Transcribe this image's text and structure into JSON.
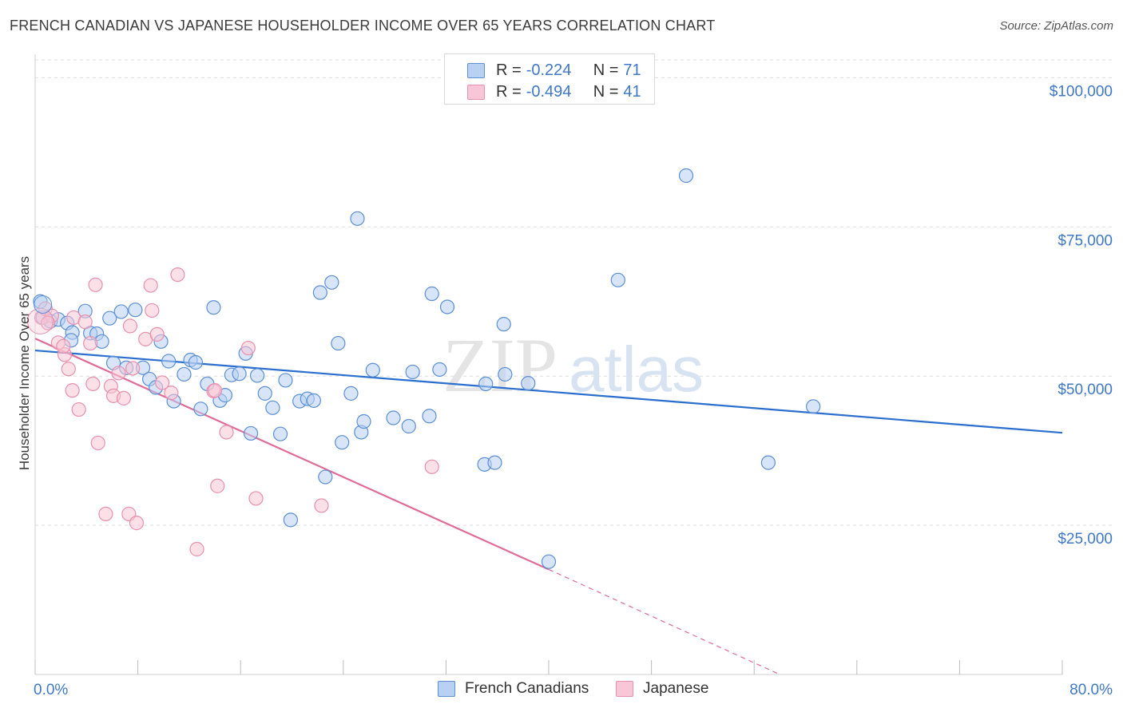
{
  "header": {
    "title": "FRENCH CANADIAN VS JAPANESE HOUSEHOLDER INCOME OVER 65 YEARS CORRELATION CHART",
    "source": "Source: ZipAtlas.com"
  },
  "watermark": {
    "zip": "ZIP",
    "atlas": "atlas"
  },
  "legend_top": {
    "rows": [
      {
        "r_label": "R =",
        "r_value": "-0.224",
        "n_label": "N =",
        "n_value": "71"
      },
      {
        "r_label": "R =",
        "r_value": "-0.494",
        "n_label": "N =",
        "n_value": "41"
      }
    ]
  },
  "legend_bottom": {
    "items": [
      "French Canadians",
      "Japanese"
    ]
  },
  "colors": {
    "blue_fill": "#b8d0f2",
    "blue_stroke": "#5b8fd6",
    "blue_line": "#2a6fcf",
    "pink_fill": "#f8c6d6",
    "pink_stroke": "#e890ae",
    "pink_line": "#e06a98",
    "tick_text": "#3f78c8",
    "grid": "#dddddd"
  },
  "chart_data": {
    "type": "scatter",
    "title": "FRENCH CANADIAN VS JAPANESE HOUSEHOLDER INCOME OVER 65 YEARS CORRELATION CHART",
    "xlabel": "",
    "ylabel": "Householder Income Over 65 years",
    "xlim": [
      0,
      80
    ],
    "ylim": [
      0,
      105000
    ],
    "x_tick_labels": [
      "0.0%",
      "80.0%"
    ],
    "y_ticks": [
      25000,
      50000,
      75000,
      100000
    ],
    "y_tick_labels": [
      "$25,000",
      "$50,000",
      "$75,000",
      "$100,000"
    ],
    "grid": true,
    "legend_position": "top-center",
    "series": [
      {
        "name": "French Canadians",
        "r": -0.224,
        "n": 71,
        "trend": {
          "x": [
            0,
            80
          ],
          "y": [
            54300,
            40500
          ]
        },
        "points": [
          [
            0.4,
            62500
          ],
          [
            0.6,
            59800
          ],
          [
            1.2,
            59200
          ],
          [
            1.8,
            59500
          ],
          [
            2.5,
            58900
          ],
          [
            2.9,
            57300
          ],
          [
            2.8,
            56000
          ],
          [
            3.9,
            60900
          ],
          [
            4.3,
            57200
          ],
          [
            4.8,
            57100
          ],
          [
            5.2,
            55800
          ],
          [
            5.8,
            59700
          ],
          [
            6.1,
            52200
          ],
          [
            6.7,
            60800
          ],
          [
            7.1,
            51400
          ],
          [
            7.8,
            61100
          ],
          [
            8.4,
            51400
          ],
          [
            8.9,
            49500
          ],
          [
            9.4,
            48100
          ],
          [
            9.8,
            55800
          ],
          [
            10.4,
            52500
          ],
          [
            10.8,
            45800
          ],
          [
            11.6,
            50300
          ],
          [
            12.1,
            52700
          ],
          [
            12.5,
            52300
          ],
          [
            12.9,
            44500
          ],
          [
            13.4,
            48700
          ],
          [
            13.9,
            61500
          ],
          [
            14.4,
            45900
          ],
          [
            14.8,
            46800
          ],
          [
            15.3,
            50200
          ],
          [
            15.9,
            50400
          ],
          [
            16.4,
            53800
          ],
          [
            16.8,
            40400
          ],
          [
            17.3,
            50100
          ],
          [
            17.9,
            47100
          ],
          [
            18.5,
            44700
          ],
          [
            19.1,
            40300
          ],
          [
            19.5,
            49300
          ],
          [
            19.9,
            25900
          ],
          [
            20.6,
            45800
          ],
          [
            21.2,
            46200
          ],
          [
            21.7,
            45900
          ],
          [
            22.2,
            64000
          ],
          [
            22.6,
            33100
          ],
          [
            23.1,
            65700
          ],
          [
            23.6,
            55500
          ],
          [
            23.9,
            38900
          ],
          [
            24.6,
            47100
          ],
          [
            25.1,
            76400
          ],
          [
            25.4,
            40600
          ],
          [
            25.6,
            42400
          ],
          [
            26.3,
            51000
          ],
          [
            27.9,
            43000
          ],
          [
            29.1,
            41600
          ],
          [
            29.4,
            50700
          ],
          [
            30.7,
            43300
          ],
          [
            30.9,
            63800
          ],
          [
            31.5,
            51100
          ],
          [
            32.1,
            61600
          ],
          [
            35.0,
            35200
          ],
          [
            35.1,
            48700
          ],
          [
            35.8,
            35500
          ],
          [
            36.5,
            58700
          ],
          [
            36.6,
            50300
          ],
          [
            38.4,
            48800
          ],
          [
            40.0,
            18900
          ],
          [
            45.4,
            66100
          ],
          [
            50.7,
            83600
          ],
          [
            57.1,
            35500
          ],
          [
            60.6,
            44900
          ]
        ]
      },
      {
        "name": "Japanese",
        "r": -0.494,
        "n": 41,
        "trend": {
          "x": [
            0,
            40
          ],
          "y": [
            56300,
            17600
          ]
        },
        "trend_dashed": {
          "x": [
            40,
            58
          ],
          "y": [
            17600,
            0
          ]
        },
        "points": [
          [
            0.5,
            59800
          ],
          [
            0.8,
            61300
          ],
          [
            1.3,
            60100
          ],
          [
            1.8,
            55600
          ],
          [
            2.3,
            53600
          ],
          [
            2.6,
            51200
          ],
          [
            2.9,
            47600
          ],
          [
            3.0,
            59800
          ],
          [
            3.4,
            44400
          ],
          [
            3.9,
            59100
          ],
          [
            4.3,
            55500
          ],
          [
            4.5,
            48700
          ],
          [
            4.7,
            65300
          ],
          [
            4.9,
            38800
          ],
          [
            5.5,
            26900
          ],
          [
            5.9,
            48300
          ],
          [
            6.1,
            46700
          ],
          [
            6.5,
            50500
          ],
          [
            6.9,
            46300
          ],
          [
            7.3,
            26900
          ],
          [
            7.4,
            58400
          ],
          [
            7.6,
            51300
          ],
          [
            7.9,
            25400
          ],
          [
            8.6,
            56200
          ],
          [
            9.0,
            65200
          ],
          [
            9.1,
            61000
          ],
          [
            9.5,
            57000
          ],
          [
            9.9,
            48900
          ],
          [
            10.6,
            47200
          ],
          [
            11.1,
            67000
          ],
          [
            12.6,
            21000
          ],
          [
            13.9,
            47500
          ],
          [
            14.0,
            47600
          ],
          [
            14.2,
            31600
          ],
          [
            14.9,
            40600
          ],
          [
            16.6,
            54700
          ],
          [
            17.2,
            29500
          ],
          [
            22.3,
            28300
          ],
          [
            30.9,
            34800
          ],
          [
            1.0,
            58900
          ],
          [
            2.2,
            55000
          ]
        ]
      }
    ]
  }
}
